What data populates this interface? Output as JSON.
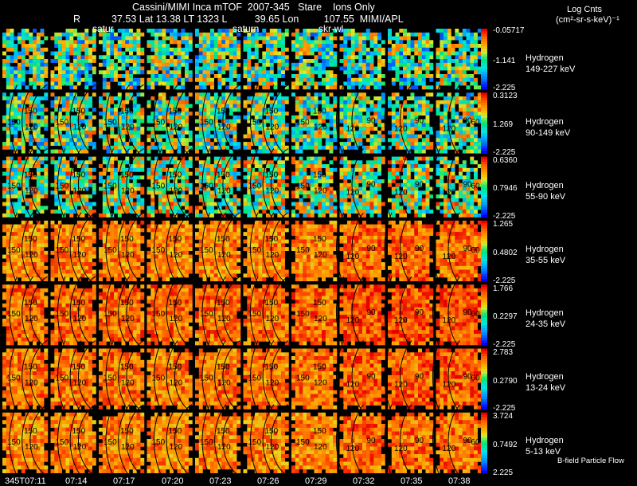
{
  "header": {
    "title": "Cassini/MIMI Inca mTOF  2007-345   Stare    Ions Only",
    "r_label": "R",
    "position_line": "37.53 Lat 13.38 LT 1323 L          39.65 Lon         107.55  MIMI/APL",
    "markers": [
      "satur",
      "saturn",
      "skr-wl"
    ],
    "log_label": "Log Cnts",
    "units_label": "(cm²-sr-s-keV)⁻¹"
  },
  "time_labels": [
    "345T07:11",
    "07:14",
    "07:17",
    "07:20",
    "07:23",
    "07:26",
    "07:29",
    "07:32",
    "07:35",
    "07:38"
  ],
  "footer_note": "B-field Particle Flow",
  "colors": {
    "background": "#000000",
    "text": "#ffffff",
    "contour": "#000000"
  },
  "chart_data": {
    "type": "heatmap",
    "title": "Cassini/MIMI Inca mTOF  2007-345   Stare    Ions Only",
    "x_ticks": [
      "345T07:11",
      "07:14",
      "07:17",
      "07:20",
      "07:23",
      "07:26",
      "07:29",
      "07:32",
      "07:35",
      "07:38"
    ],
    "panels_per_row": 10,
    "colorscale": "rainbow (blue-cyan-green-yellow-orange-red), log scale",
    "rows": [
      {
        "species": "Hydrogen",
        "energy": "149-227 keV",
        "cb_max": "-0.05717",
        "cb_mid": "-1.141",
        "cb_min": "-2.225",
        "level": 0.48,
        "contour_labels": []
      },
      {
        "species": "Hydrogen",
        "energy": "90-149 keV",
        "cb_max": "0.3123",
        "cb_mid": "1.269",
        "cb_min": "-2.225",
        "level": 0.52,
        "contour_labels": [
          "150",
          "120",
          "90",
          "60"
        ]
      },
      {
        "species": "Hydrogen",
        "energy": "55-90 keV",
        "cb_max": "0.6360",
        "cb_mid": "0.7946",
        "cb_min": "-2.225",
        "level": 0.58,
        "contour_labels": [
          "150",
          "120",
          "90",
          "60"
        ]
      },
      {
        "species": "Hydrogen",
        "energy": "35-55 keV",
        "cb_max": "1.265",
        "cb_mid": "0.4802",
        "cb_min": "-2.225",
        "level": 0.8,
        "contour_labels": [
          "150",
          "120",
          "90",
          "60"
        ]
      },
      {
        "species": "Hydrogen",
        "energy": "24-35 keV",
        "cb_max": "1.766",
        "cb_mid": "0.2297",
        "cb_min": "-2.225",
        "level": 0.84,
        "contour_labels": [
          "150",
          "120",
          "90",
          "60"
        ]
      },
      {
        "species": "Hydrogen",
        "energy": "13-24 keV",
        "cb_max": "2.783",
        "cb_mid": "0.2790",
        "cb_min": "-2.225",
        "level": 0.82,
        "contour_labels": [
          "150",
          "120",
          "90",
          "60"
        ]
      },
      {
        "species": "Hydrogen",
        "energy": "5-13 keV",
        "cb_max": "3.724",
        "cb_mid": "0.7492",
        "cb_min": "2.225",
        "level": 0.8,
        "contour_labels": [
          "150",
          "120",
          "90",
          "60"
        ]
      }
    ]
  }
}
